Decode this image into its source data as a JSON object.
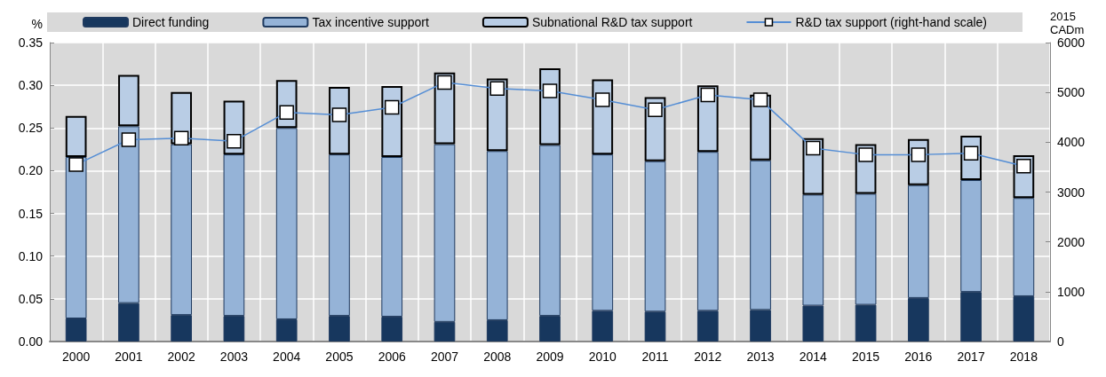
{
  "chart_data": {
    "type": "bar",
    "stacked": true,
    "ylabel": "%",
    "y2label": "2015 CADm",
    "categories": [
      "2000",
      "2001",
      "2002",
      "2003",
      "2004",
      "2005",
      "2006",
      "2007",
      "2008",
      "2009",
      "2010",
      "2011",
      "2012",
      "2013",
      "2014",
      "2015",
      "2016",
      "2017",
      "2018"
    ],
    "series": [
      {
        "name": "Direct funding",
        "color": "#17375e",
        "values": [
          0.027,
          0.045,
          0.031,
          0.03,
          0.026,
          0.03,
          0.029,
          0.023,
          0.025,
          0.03,
          0.036,
          0.035,
          0.036,
          0.037,
          0.042,
          0.043,
          0.051,
          0.058,
          0.053
        ]
      },
      {
        "name": "Tax incentive support",
        "color": "#95b3d7",
        "values": [
          0.189,
          0.207,
          0.2,
          0.189,
          0.224,
          0.189,
          0.187,
          0.208,
          0.198,
          0.2,
          0.183,
          0.176,
          0.186,
          0.175,
          0.13,
          0.13,
          0.132,
          0.131,
          0.115
        ]
      },
      {
        "name": "Subnational R&D tax support",
        "color": "#b9cde5",
        "values": [
          0.048,
          0.06,
          0.061,
          0.063,
          0.056,
          0.079,
          0.083,
          0.084,
          0.085,
          0.09,
          0.088,
          0.075,
          0.078,
          0.077,
          0.066,
          0.058,
          0.054,
          0.052,
          0.05
        ]
      },
      {
        "name": "R&D tax support (right-hand scale)",
        "type": "line",
        "axis": "y2",
        "color": "#558ed5",
        "marker": "square",
        "values": [
          3550,
          4050,
          4080,
          4020,
          4600,
          4550,
          4700,
          5200,
          5080,
          5030,
          4850,
          4650,
          4950,
          4850,
          3880,
          3750,
          3750,
          3780,
          3520
        ]
      }
    ],
    "ylim": [
      0,
      0.35
    ],
    "yticks": [
      {
        "value": 0,
        "label": "0.00"
      },
      {
        "value": 0.05,
        "label": "0.05"
      },
      {
        "value": 0.1,
        "label": "0.10"
      },
      {
        "value": 0.15,
        "label": "0.15"
      },
      {
        "value": 0.2,
        "label": "0.20"
      },
      {
        "value": 0.25,
        "label": "0.25"
      },
      {
        "value": 0.3,
        "label": "0.30"
      },
      {
        "value": 0.35,
        "label": "0.35"
      }
    ],
    "y2lim": [
      0,
      6000
    ],
    "y2ticks": [
      0,
      1000,
      2000,
      3000,
      4000,
      5000,
      6000
    ],
    "grid": true,
    "legend": "top"
  }
}
